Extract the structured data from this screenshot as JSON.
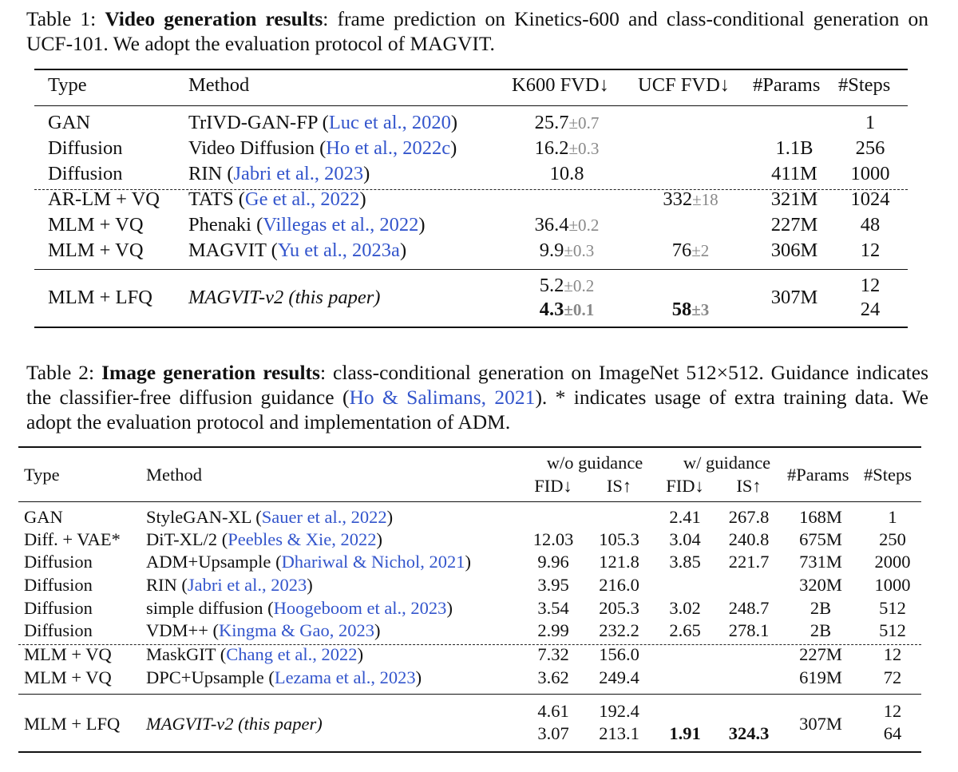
{
  "table1": {
    "caption": {
      "label": "Table 1:",
      "bold": "Video generation results",
      "text": ": frame prediction on Kinetics-600 and class-conditional generation on UCF-101. We adopt the evaluation protocol of MAGVIT."
    },
    "headers": [
      "Type",
      "Method",
      "K600 FVD↓",
      "UCF FVD↓",
      "#Params",
      "#Steps"
    ],
    "rows": [
      {
        "type": "GAN",
        "method": "TrIVD-GAN-FP",
        "cite": "Luc et al., 2020",
        "k600": "25.7",
        "k600_pm": "±0.7",
        "ucf": "",
        "ucf_pm": "",
        "params": "",
        "steps": "1"
      },
      {
        "type": "Diffusion",
        "method": "Video Diffusion",
        "cite": "Ho et al., 2022c",
        "k600": "16.2",
        "k600_pm": "±0.3",
        "ucf": "",
        "ucf_pm": "",
        "params": "1.1B",
        "steps": "256"
      },
      {
        "type": "Diffusion",
        "method": "RIN",
        "cite": "Jabri et al., 2023",
        "k600": "10.8",
        "k600_pm": "",
        "ucf": "",
        "ucf_pm": "",
        "params": "411M",
        "steps": "1000"
      },
      {
        "type": "AR-LM + VQ",
        "method": "TATS",
        "cite": "Ge et al., 2022",
        "k600": "",
        "k600_pm": "",
        "ucf": "332",
        "ucf_pm": "±18",
        "params": "321M",
        "steps": "1024"
      },
      {
        "type": "MLM + VQ",
        "method": "Phenaki",
        "cite": "Villegas et al., 2022",
        "k600": "36.4",
        "k600_pm": "±0.2",
        "ucf": "",
        "ucf_pm": "",
        "params": "227M",
        "steps": "48"
      },
      {
        "type": "MLM + VQ",
        "method": "MAGVIT",
        "cite": "Yu et al., 2023a",
        "k600": "9.9",
        "k600_pm": "±0.3",
        "ucf": "76",
        "ucf_pm": "±2",
        "params": "306M",
        "steps": "12"
      }
    ],
    "ours": {
      "type": "MLM + LFQ",
      "method": "MAGVIT-v2 (this paper)",
      "k600_a": "5.2",
      "k600_a_pm": "±0.2",
      "k600_b": "4.3",
      "k600_b_pm": "±0.1",
      "ucf_b": "58",
      "ucf_b_pm": "±3",
      "params": "307M",
      "steps_a": "12",
      "steps_b": "24"
    }
  },
  "table2": {
    "caption": {
      "label": "Table 2:",
      "bold": "Image generation results",
      "text1": ": class-conditional generation on ImageNet 512×512. Guidance indicates the classifier-free diffusion guidance (",
      "cite": "Ho & Salimans, 2021",
      "text2": "). * indicates usage of extra training data. We adopt the evaluation protocol and implementation of ADM."
    },
    "headers": {
      "type": "Type",
      "method": "Method",
      "wo_guidance": "w/o guidance",
      "w_guidance": "w/ guidance",
      "fid": "FID↓",
      "is": "IS↑",
      "params": "#Params",
      "steps": "#Steps"
    },
    "rows": [
      {
        "type": "GAN",
        "method": "StyleGAN-XL",
        "cite": "Sauer et al., 2022",
        "fid": "",
        "is": "",
        "gfid": "2.41",
        "gis": "267.8",
        "params": "168M",
        "steps": "1"
      },
      {
        "type": "Diff. + VAE*",
        "method": "DiT-XL/2",
        "cite": "Peebles & Xie, 2022",
        "fid": "12.03",
        "is": "105.3",
        "gfid": "3.04",
        "gis": "240.8",
        "params": "675M",
        "steps": "250"
      },
      {
        "type": "Diffusion",
        "method": "ADM+Upsample",
        "cite": "Dhariwal & Nichol, 2021",
        "fid": "9.96",
        "is": "121.8",
        "gfid": "3.85",
        "gis": "221.7",
        "params": "731M",
        "steps": "2000"
      },
      {
        "type": "Diffusion",
        "method": "RIN",
        "cite": "Jabri et al., 2023",
        "fid": "3.95",
        "is": "216.0",
        "gfid": "",
        "gis": "",
        "params": "320M",
        "steps": "1000"
      },
      {
        "type": "Diffusion",
        "method": "simple diffusion",
        "cite": "Hoogeboom et al., 2023",
        "fid": "3.54",
        "is": "205.3",
        "gfid": "3.02",
        "gis": "248.7",
        "params": "2B",
        "steps": "512"
      },
      {
        "type": "Diffusion",
        "method": "VDM++",
        "cite": "Kingma & Gao, 2023",
        "fid": "2.99",
        "is": "232.2",
        "gfid": "2.65",
        "gis": "278.1",
        "params": "2B",
        "steps": "512"
      },
      {
        "type": "MLM + VQ",
        "method": "MaskGIT",
        "cite": "Chang et al., 2022",
        "fid": "7.32",
        "is": "156.0",
        "gfid": "",
        "gis": "",
        "params": "227M",
        "steps": "12"
      },
      {
        "type": "MLM + VQ",
        "method": "DPC+Upsample",
        "cite": "Lezama et al., 2023",
        "fid": "3.62",
        "is": "249.4",
        "gfid": "",
        "gis": "",
        "params": "619M",
        "steps": "72"
      }
    ],
    "ours": {
      "type": "MLM + LFQ",
      "method": "MAGVIT-v2 (this paper)",
      "fid_a": "4.61",
      "is_a": "192.4",
      "fid_b": "3.07",
      "is_b": "213.1",
      "gfid_b": "1.91",
      "gis_b": "324.3",
      "params": "307M",
      "steps_a": "12",
      "steps_b": "64"
    }
  }
}
